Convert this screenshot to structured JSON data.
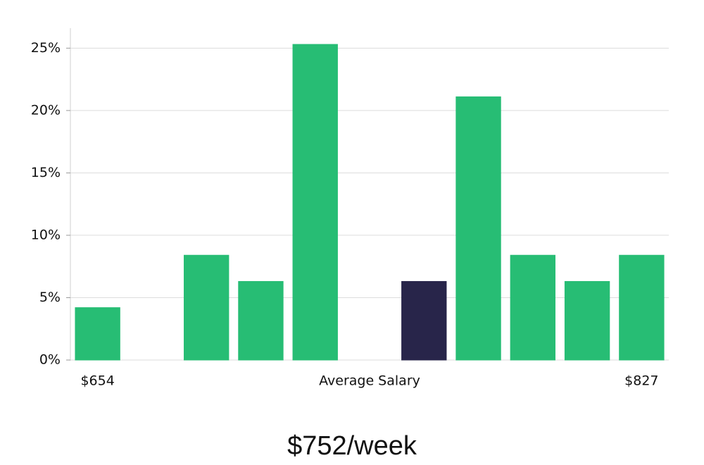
{
  "chart_data": {
    "type": "bar",
    "categories": [
      "$654",
      null,
      null,
      null,
      null,
      null,
      null,
      null,
      null,
      null,
      "$827"
    ],
    "values": [
      4.2,
      0,
      8.4,
      6.3,
      25.3,
      0,
      6.3,
      21.1,
      8.4,
      6.3,
      8.4
    ],
    "colors": [
      "#27bd74",
      "#27bd74",
      "#27bd74",
      "#27bd74",
      "#27bd74",
      "#27bd74",
      "#28254a",
      "#27bd74",
      "#27bd74",
      "#27bd74",
      "#27bd74"
    ],
    "x_label": "Average Salary",
    "annotation": "$752/week",
    "ylim": [
      0,
      26.6
    ],
    "yticks": [
      {
        "value": 0,
        "label": "0%"
      },
      {
        "value": 5,
        "label": "5%"
      },
      {
        "value": 10,
        "label": "10%"
      },
      {
        "value": 15,
        "label": "15%"
      },
      {
        "value": 20,
        "label": "20%"
      },
      {
        "value": 25,
        "label": "25%"
      }
    ],
    "grid": true
  }
}
